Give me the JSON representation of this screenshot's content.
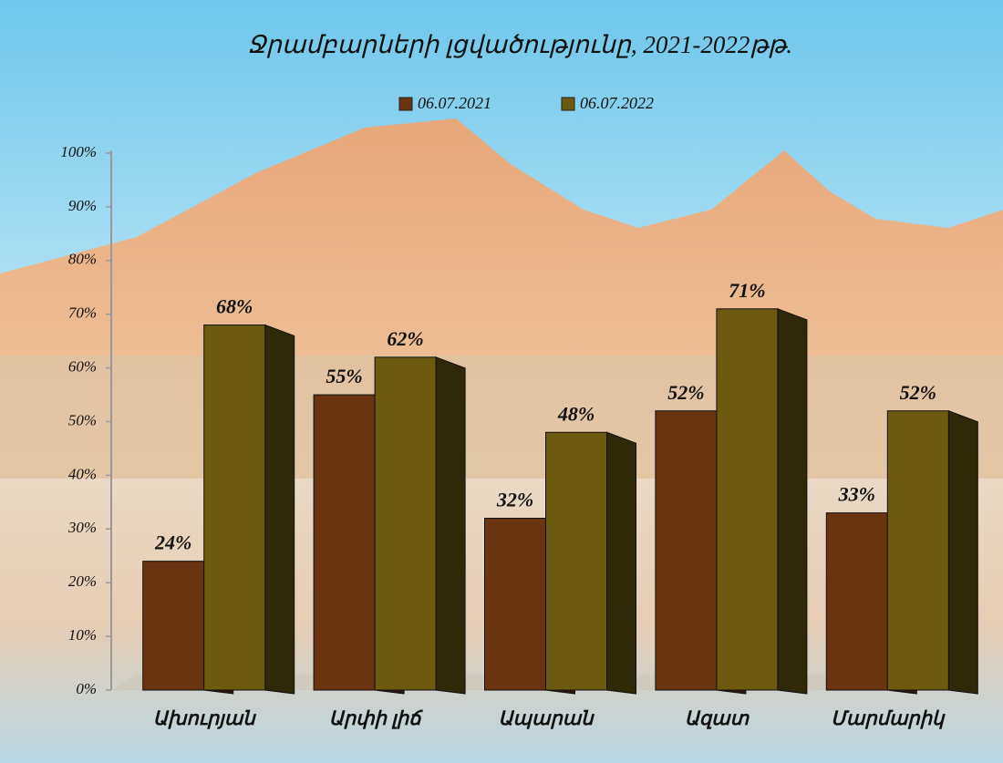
{
  "chart_data": {
    "type": "bar",
    "title": "Ջրամբարների լցվածությունը,  2021-2022թթ.",
    "categories": [
      "Ախուրյան",
      "Արփի լիճ",
      "Ապարան",
      "Ազատ",
      "Մարմարիկ"
    ],
    "series": [
      {
        "name": "06.07.2021",
        "color": "#6b3410",
        "values": [
          24,
          55,
          32,
          52,
          33
        ],
        "value_labels": [
          "24%",
          "55%",
          "32%",
          "52%",
          "33%"
        ]
      },
      {
        "name": "06.07.2022",
        "color": "#6b5a10",
        "values": [
          68,
          62,
          48,
          71,
          52
        ],
        "value_labels": [
          "68%",
          "62%",
          "48%",
          "71%",
          "52%"
        ]
      }
    ],
    "ylim": [
      0,
      100
    ],
    "yticks": [
      {
        "value": 0,
        "label": "0%"
      },
      {
        "value": 10,
        "label": "10%"
      },
      {
        "value": 20,
        "label": "20%"
      },
      {
        "value": 30,
        "label": "30%"
      },
      {
        "value": 40,
        "label": "40%"
      },
      {
        "value": 50,
        "label": "50%"
      },
      {
        "value": 60,
        "label": "60%"
      },
      {
        "value": 70,
        "label": "70%"
      },
      {
        "value": 80,
        "label": "80%"
      },
      {
        "value": 90,
        "label": "90%"
      },
      {
        "value": 100,
        "label": "100%"
      }
    ],
    "grid": false
  }
}
